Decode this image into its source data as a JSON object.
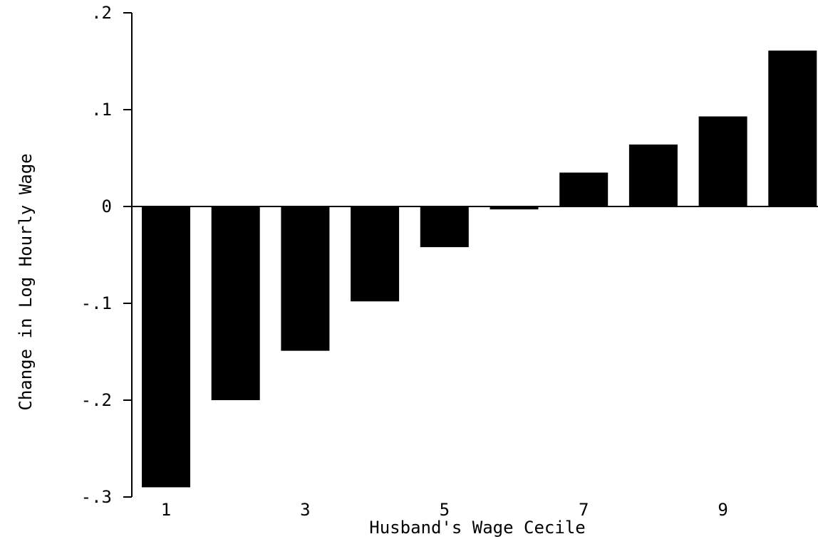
{
  "chart_data": {
    "type": "bar",
    "title": "",
    "xlabel": "Husband's Wage Cecile",
    "ylabel": "Change in Log Hourly Wage",
    "categories": [
      "1",
      "2",
      "3",
      "4",
      "5",
      "6",
      "7",
      "8",
      "9",
      "10"
    ],
    "x_tick_labels": [
      {
        "category": "1",
        "label": "1"
      },
      {
        "category": "3",
        "label": "3"
      },
      {
        "category": "5",
        "label": "5"
      },
      {
        "category": "7",
        "label": "7"
      },
      {
        "category": "9",
        "label": "9"
      }
    ],
    "values": [
      -0.29,
      -0.2,
      -0.149,
      -0.098,
      -0.042,
      -0.003,
      0.035,
      0.064,
      0.093,
      0.161
    ],
    "ylim": [
      -0.3,
      0.2
    ],
    "yticks": [
      {
        "value": 0.2,
        "label": ".2"
      },
      {
        "value": 0.1,
        "label": ".1"
      },
      {
        "value": 0,
        "label": "0"
      },
      {
        "value": -0.1,
        "label": "-.1"
      },
      {
        "value": -0.2,
        "label": "-.2"
      },
      {
        "value": -0.3,
        "label": "-.3"
      }
    ],
    "grid": false,
    "legend": "none",
    "bar_color": "#000000"
  }
}
